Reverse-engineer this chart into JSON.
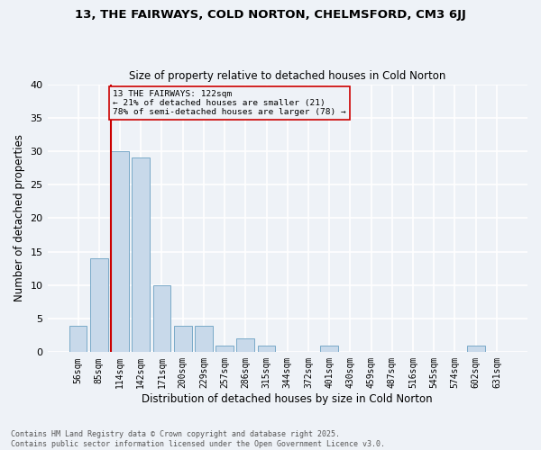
{
  "title1": "13, THE FAIRWAYS, COLD NORTON, CHELMSFORD, CM3 6JJ",
  "title2": "Size of property relative to detached houses in Cold Norton",
  "xlabel": "Distribution of detached houses by size in Cold Norton",
  "ylabel": "Number of detached properties",
  "bar_color": "#c8d9ea",
  "bar_edge_color": "#7aaac8",
  "bin_labels": [
    "56sqm",
    "85sqm",
    "114sqm",
    "142sqm",
    "171sqm",
    "200sqm",
    "229sqm",
    "257sqm",
    "286sqm",
    "315sqm",
    "344sqm",
    "372sqm",
    "401sqm",
    "430sqm",
    "459sqm",
    "487sqm",
    "516sqm",
    "545sqm",
    "574sqm",
    "602sqm",
    "631sqm"
  ],
  "values": [
    4,
    14,
    30,
    29,
    10,
    4,
    4,
    1,
    2,
    1,
    0,
    0,
    1,
    0,
    0,
    0,
    0,
    0,
    0,
    1,
    0
  ],
  "ylim": [
    0,
    40
  ],
  "yticks": [
    0,
    5,
    10,
    15,
    20,
    25,
    30,
    35,
    40
  ],
  "annotation_line1": "13 THE FAIRWAYS: 122sqm",
  "annotation_line2": "← 21% of detached houses are smaller (21)",
  "annotation_line3": "78% of semi-detached houses are larger (78) →",
  "annotation_color": "#cc0000",
  "background_color": "#eef2f7",
  "grid_color": "#ffffff",
  "footer1": "Contains HM Land Registry data © Crown copyright and database right 2025.",
  "footer2": "Contains public sector information licensed under the Open Government Licence v3.0."
}
